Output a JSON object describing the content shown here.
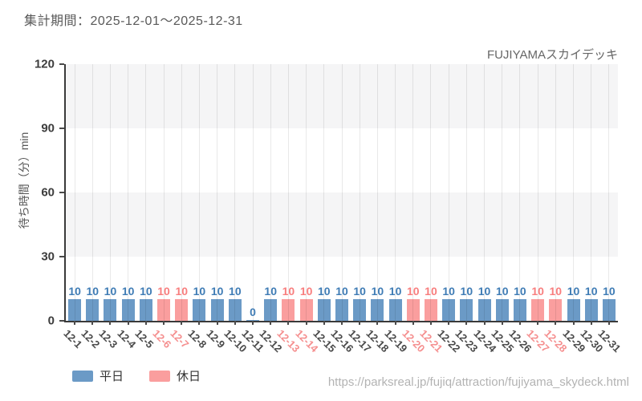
{
  "header": {
    "title": "集計期間：2025-12-01～2025-12-31"
  },
  "footer": {
    "url": "https://parksreal.jp/fujiq/attraction/fujiyama_skydeck.html"
  },
  "chart_data": {
    "type": "bar",
    "title": "FUJIYAMAスカイデッキ",
    "xlabel": "",
    "ylabel": "待ち時間（分）min",
    "ylim": [
      0,
      120
    ],
    "yticks": [
      0,
      30,
      60,
      90,
      120
    ],
    "grid": "vertical gridlines at each bar; alternating horizontal bands",
    "legend_position": "bottom-left",
    "categories": [
      "12-1",
      "12-2",
      "12-3",
      "12-4",
      "12-5",
      "12-6",
      "12-7",
      "12-8",
      "12-9",
      "12-10",
      "12-11",
      "12-12",
      "12-13",
      "12-14",
      "12-15",
      "12-16",
      "12-17",
      "12-18",
      "12-19",
      "12-20",
      "12-21",
      "12-22",
      "12-23",
      "12-24",
      "12-25",
      "12-26",
      "12-27",
      "12-28",
      "12-29",
      "12-30",
      "12-31"
    ],
    "values": [
      10,
      10,
      10,
      10,
      10,
      10,
      10,
      10,
      10,
      10,
      0,
      10,
      10,
      10,
      10,
      10,
      10,
      10,
      10,
      10,
      10,
      10,
      10,
      10,
      10,
      10,
      10,
      10,
      10,
      10,
      10
    ],
    "day_types": [
      "weekday",
      "weekday",
      "weekday",
      "weekday",
      "weekday",
      "holiday",
      "holiday",
      "weekday",
      "weekday",
      "weekday",
      "weekday",
      "weekday",
      "holiday",
      "holiday",
      "weekday",
      "weekday",
      "weekday",
      "weekday",
      "weekday",
      "holiday",
      "holiday",
      "weekday",
      "weekday",
      "weekday",
      "weekday",
      "weekday",
      "holiday",
      "holiday",
      "weekday",
      "weekday",
      "weekday"
    ],
    "legend": [
      {
        "label": "平日",
        "type": "weekday"
      },
      {
        "label": "休日",
        "type": "holiday"
      }
    ],
    "colors": {
      "weekday_bar": "#6b9ac6",
      "holiday_bar": "#fa9e9e",
      "weekday_value_label": "#3f7cb5",
      "holiday_value_label": "#f87e7e",
      "weekday_tick_label": "#4a4a4a",
      "holiday_tick_label": "#f58f8f"
    }
  }
}
